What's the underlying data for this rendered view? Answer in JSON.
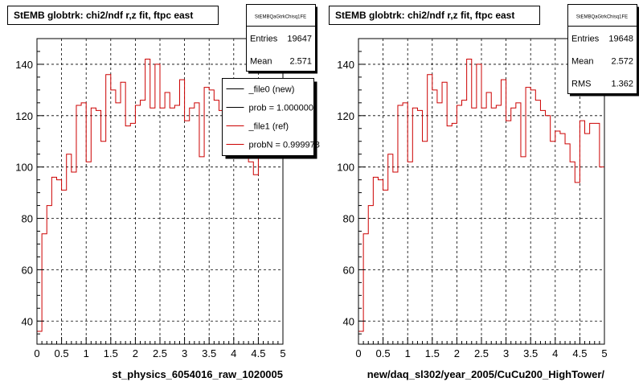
{
  "chart_data": [
    {
      "type": "histogram",
      "title": "StEMB globtrk: chi2/ndf r,z fit, ftpc east",
      "xlabel": "st_physics_6054016_raw_1020005",
      "xlim": [
        0,
        5
      ],
      "ylim": [
        31,
        150
      ],
      "xticks": [
        "0",
        "0.5",
        "1",
        "1.5",
        "2",
        "2.5",
        "3",
        "3.5",
        "4",
        "4.5",
        "5"
      ],
      "yticks": [
        "40",
        "60",
        "80",
        "100",
        "120",
        "140"
      ],
      "grid": true,
      "bin_width": 0.1,
      "values": [
        36,
        74,
        85,
        96,
        95,
        91,
        105,
        98,
        124,
        125,
        102,
        123,
        122,
        110,
        136,
        130,
        125,
        133,
        116,
        117,
        124,
        126,
        142,
        123,
        140,
        123,
        129,
        123,
        124,
        134,
        118,
        123,
        125,
        104,
        131,
        130,
        126,
        122,
        120,
        110,
        114,
        113,
        109,
        102,
        97,
        118,
        122,
        125,
        126,
        120
      ],
      "stats": {
        "name": "StEMBQaGtrkChisq1FE",
        "rows": [
          {
            "label": "Entries",
            "value": "19647"
          },
          {
            "label": "Mean",
            "value": "2.571"
          }
        ]
      },
      "legend": {
        "position": "top-right",
        "entries": [
          {
            "label": "_file0 (new)",
            "color": "#000000"
          },
          {
            "label": "prob = 1.000000",
            "color": "#000000"
          },
          {
            "label": "_file1 (ref)",
            "color": "#cc0000"
          },
          {
            "label": "probN = 0.999978",
            "color": "#cc0000"
          }
        ]
      }
    },
    {
      "type": "histogram",
      "title": "StEMB globtrk: chi2/ndf r,z fit, ftpc east",
      "xlabel": "new/daq_sl302/year_2005/CuCu200_HighTower/",
      "xlim": [
        0,
        5
      ],
      "ylim": [
        31,
        150
      ],
      "xticks": [
        "0",
        "0.5",
        "1",
        "1.5",
        "2",
        "2.5",
        "3",
        "3.5",
        "4",
        "4.5",
        "5"
      ],
      "yticks": [
        "40",
        "60",
        "80",
        "100",
        "120",
        "140"
      ],
      "grid": true,
      "bin_width": 0.1,
      "values": [
        36,
        74,
        85,
        96,
        95,
        91,
        105,
        98,
        124,
        125,
        102,
        123,
        122,
        110,
        136,
        130,
        125,
        133,
        116,
        117,
        124,
        126,
        142,
        123,
        140,
        123,
        129,
        123,
        124,
        134,
        118,
        123,
        125,
        104,
        131,
        130,
        126,
        122,
        120,
        110,
        114,
        113,
        109,
        102,
        94,
        118,
        113,
        117,
        117,
        100
      ],
      "stats": {
        "name": "StEMBQaGtrkChisq1FE",
        "rows": [
          {
            "label": "Entries",
            "value": "19648"
          },
          {
            "label": "Mean",
            "value": "2.572"
          },
          {
            "label": "RMS",
            "value": "1.362"
          }
        ]
      }
    }
  ],
  "colors": {
    "hist": "#cc0000",
    "frame": "#000000",
    "grid": "#000000"
  }
}
